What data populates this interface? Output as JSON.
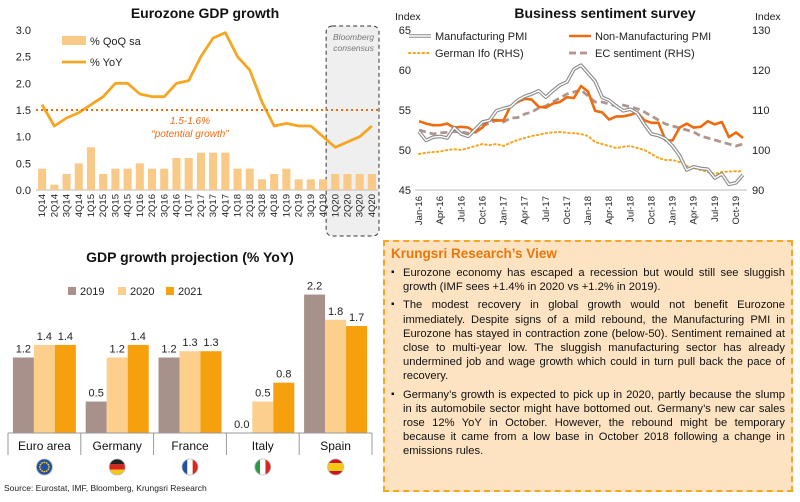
{
  "chart_data": [
    {
      "type": "bar+line",
      "title": "Eurozone GDP growth",
      "categories": [
        "1Q14",
        "2Q14",
        "3Q14",
        "4Q14",
        "1Q15",
        "2Q15",
        "3Q15",
        "4Q15",
        "1Q16",
        "2Q16",
        "3Q16",
        "4Q16",
        "1Q17",
        "2Q17",
        "3Q17",
        "4Q17",
        "1Q18",
        "2Q18",
        "3Q18",
        "4Q18",
        "1Q19",
        "2Q19",
        "3Q19",
        "4Q19",
        "1Q20",
        "2Q20",
        "3Q20",
        "4Q20"
      ],
      "ylim": [
        0,
        3.0
      ],
      "yticks": [
        "0.0",
        "0.5",
        "1.0",
        "1.5",
        "2.0",
        "2.5",
        "3.0"
      ],
      "series": [
        {
          "name": "% QoQ sa",
          "type": "bar",
          "color": "#f8c987",
          "values": [
            0.4,
            0.1,
            0.3,
            0.5,
            0.8,
            0.3,
            0.4,
            0.4,
            0.5,
            0.4,
            0.4,
            0.6,
            0.6,
            0.7,
            0.7,
            0.7,
            0.4,
            0.4,
            0.2,
            0.3,
            0.4,
            0.2,
            0.2,
            0.2,
            0.3,
            0.3,
            0.3,
            0.3
          ]
        },
        {
          "name": "% YoY",
          "type": "line",
          "color": "#f5a623",
          "values": [
            1.6,
            1.2,
            1.35,
            1.45,
            1.6,
            1.75,
            2.0,
            2.0,
            1.8,
            1.75,
            1.75,
            2.0,
            2.05,
            2.5,
            2.85,
            2.95,
            2.5,
            2.25,
            1.65,
            1.2,
            1.25,
            1.2,
            1.2,
            1.0,
            0.8,
            0.9,
            1.0,
            1.2
          ]
        }
      ],
      "reference_line": {
        "value": 1.5,
        "color": "#ee6b0f",
        "label1": "1.5-1.6%",
        "label2": "“potential growth”"
      },
      "forecast_box": {
        "from": "1Q20",
        "to": "4Q20",
        "label1": "Bloomberg",
        "label2": "consensus"
      }
    },
    {
      "type": "line",
      "title": "Business sentiment survey",
      "left_axis_label": "Index",
      "right_axis_label": "Index",
      "ylim_left": [
        45,
        65
      ],
      "ylim_right": [
        90,
        130
      ],
      "yticks_left": [
        "45",
        "50",
        "55",
        "60",
        "65"
      ],
      "yticks_right": [
        "90",
        "100",
        "110",
        "120",
        "130"
      ],
      "x_tick_labels": [
        "Jan-16",
        "Apr-16",
        "Jul-16",
        "Oct-16",
        "Jan-17",
        "Apr-17",
        "Jul-17",
        "Oct-17",
        "Jan-18",
        "Apr-18",
        "Jul-18",
        "Oct-18",
        "Jan-19",
        "Apr-19",
        "Jul-19",
        "Oct-19"
      ],
      "series": [
        {
          "name": "Manufacturing PMI",
          "axis": "left",
          "color": "#999999",
          "style": "double",
          "values": [
            52.3,
            51.2,
            51.6,
            51.7,
            51.5,
            52.8,
            52.0,
            51.7,
            52.6,
            53.5,
            53.7,
            54.9,
            55.2,
            55.4,
            56.2,
            56.7,
            57.0,
            57.4,
            56.6,
            57.4,
            58.1,
            58.5,
            60.1,
            60.6,
            59.6,
            58.6,
            56.6,
            56.2,
            55.5,
            54.9,
            55.1,
            54.6,
            53.2,
            52.0,
            51.8,
            51.4,
            50.5,
            49.3,
            47.5,
            47.9,
            47.7,
            47.6,
            46.5,
            47.0,
            45.7,
            45.9,
            46.9
          ]
        },
        {
          "name": "Non-Manufacturing PMI",
          "axis": "left",
          "color": "#ee6b0f",
          "style": "solid",
          "values": [
            53.6,
            53.3,
            53.1,
            53.1,
            53.3,
            52.8,
            52.9,
            52.8,
            52.2,
            52.8,
            53.8,
            53.7,
            53.7,
            55.5,
            56.0,
            56.4,
            56.3,
            55.4,
            55.3,
            55.8,
            56.0,
            56.6,
            56.5,
            58.0,
            57.3,
            54.9,
            54.7,
            53.8,
            54.2,
            54.2,
            54.4,
            54.7,
            53.7,
            53.4,
            53.4,
            51.2,
            51.2,
            52.8,
            53.3,
            52.8,
            52.9,
            53.6,
            53.2,
            53.5,
            51.6,
            52.2,
            51.5
          ]
        },
        {
          "name": "German Ifo (RHS)",
          "axis": "right",
          "color": "#f5a623",
          "style": "dotted",
          "values": [
            99.0,
            99.3,
            99.5,
            99.6,
            100.0,
            100.2,
            100.0,
            100.5,
            101.0,
            101.5,
            101.2,
            101.5,
            101.0,
            101.8,
            102.5,
            103.0,
            103.5,
            103.8,
            104.2,
            104.4,
            104.5,
            104.3,
            104.2,
            104.0,
            103.5,
            102.0,
            101.5,
            101.0,
            100.5,
            100.8,
            101.0,
            100.5,
            100.0,
            99.0,
            98.0,
            97.5,
            97.5,
            97.0,
            96.0,
            95.5,
            95.0,
            94.5,
            94.0,
            94.5,
            94.6,
            94.7,
            94.7
          ]
        },
        {
          "name": "EC sentiment (RHS)",
          "axis": "right",
          "color": "#b19590",
          "style": "dashed",
          "values": [
            105.0,
            104.5,
            104.0,
            104.3,
            104.4,
            104.6,
            104.5,
            104.2,
            104.8,
            106.2,
            106.6,
            107.5,
            107.0,
            108.0,
            108.1,
            109.0,
            109.5,
            110.5,
            111.0,
            112.0,
            113.0,
            114.0,
            114.5,
            115.0,
            113.5,
            112.0,
            112.0,
            111.5,
            111.0,
            111.2,
            110.8,
            110.3,
            109.5,
            108.5,
            107.5,
            106.5,
            106.0,
            105.5,
            105.0,
            104.5,
            103.5,
            103.0,
            102.5,
            102.0,
            101.5,
            101.0,
            101.5
          ]
        }
      ]
    },
    {
      "type": "bar",
      "title": "GDP growth projection (% YoY)",
      "categories": [
        "Euro area",
        "Germany",
        "France",
        "Italy",
        "Spain"
      ],
      "flag_icons": [
        "eu-flag-icon",
        "germany-flag-icon",
        "france-flag-icon",
        "italy-flag-icon",
        "spain-flag-icon"
      ],
      "ylim": [
        0,
        2.4
      ],
      "series": [
        {
          "name": "2019",
          "color": "#a8918b",
          "values": [
            1.2,
            0.5,
            1.2,
            0.0,
            2.2
          ],
          "labels": [
            "1.2",
            "0.5",
            "1.2",
            "0.0",
            "2.2"
          ]
        },
        {
          "name": "2020",
          "color": "#fccf8d",
          "values": [
            1.4,
            1.2,
            1.3,
            0.5,
            1.8
          ],
          "labels": [
            "1.4",
            "1.2",
            "1.3",
            "0.5",
            "1.8"
          ]
        },
        {
          "name": "2021",
          "color": "#f5a00c",
          "values": [
            1.4,
            1.4,
            1.3,
            0.8,
            1.7
          ],
          "labels": [
            "1.4",
            "1.4",
            "1.3",
            "0.8",
            "1.7"
          ]
        }
      ]
    }
  ],
  "view": {
    "title": "Krungsri Research’s View",
    "bullets": [
      "Eurozone economy has escaped a recession but would still see sluggish growth (IMF sees +1.4% in 2020 vs +1.2% in 2019).",
      "The modest recovery in global growth would not benefit Eurozone immediately. Despite signs of a mild rebound, the Manufacturing PMI in Eurozone has stayed in contraction zone (below-50). Sentiment remained at close to multi-year low. The sluggish manufacturing sector has already undermined job and wage growth which could in turn pull back the pace of recovery.",
      "Germany’s growth is expected to pick up in 2020, partly because the slump in its automobile sector might have bottomed out. Germany’s new car sales rose 12% YoY in October. However, the rebound might be temporary because it came from a low base in October 2018 following a change in emissions rules."
    ]
  },
  "source": "Source: Eurostat, IMF, Bloomberg, Krungsri Research"
}
